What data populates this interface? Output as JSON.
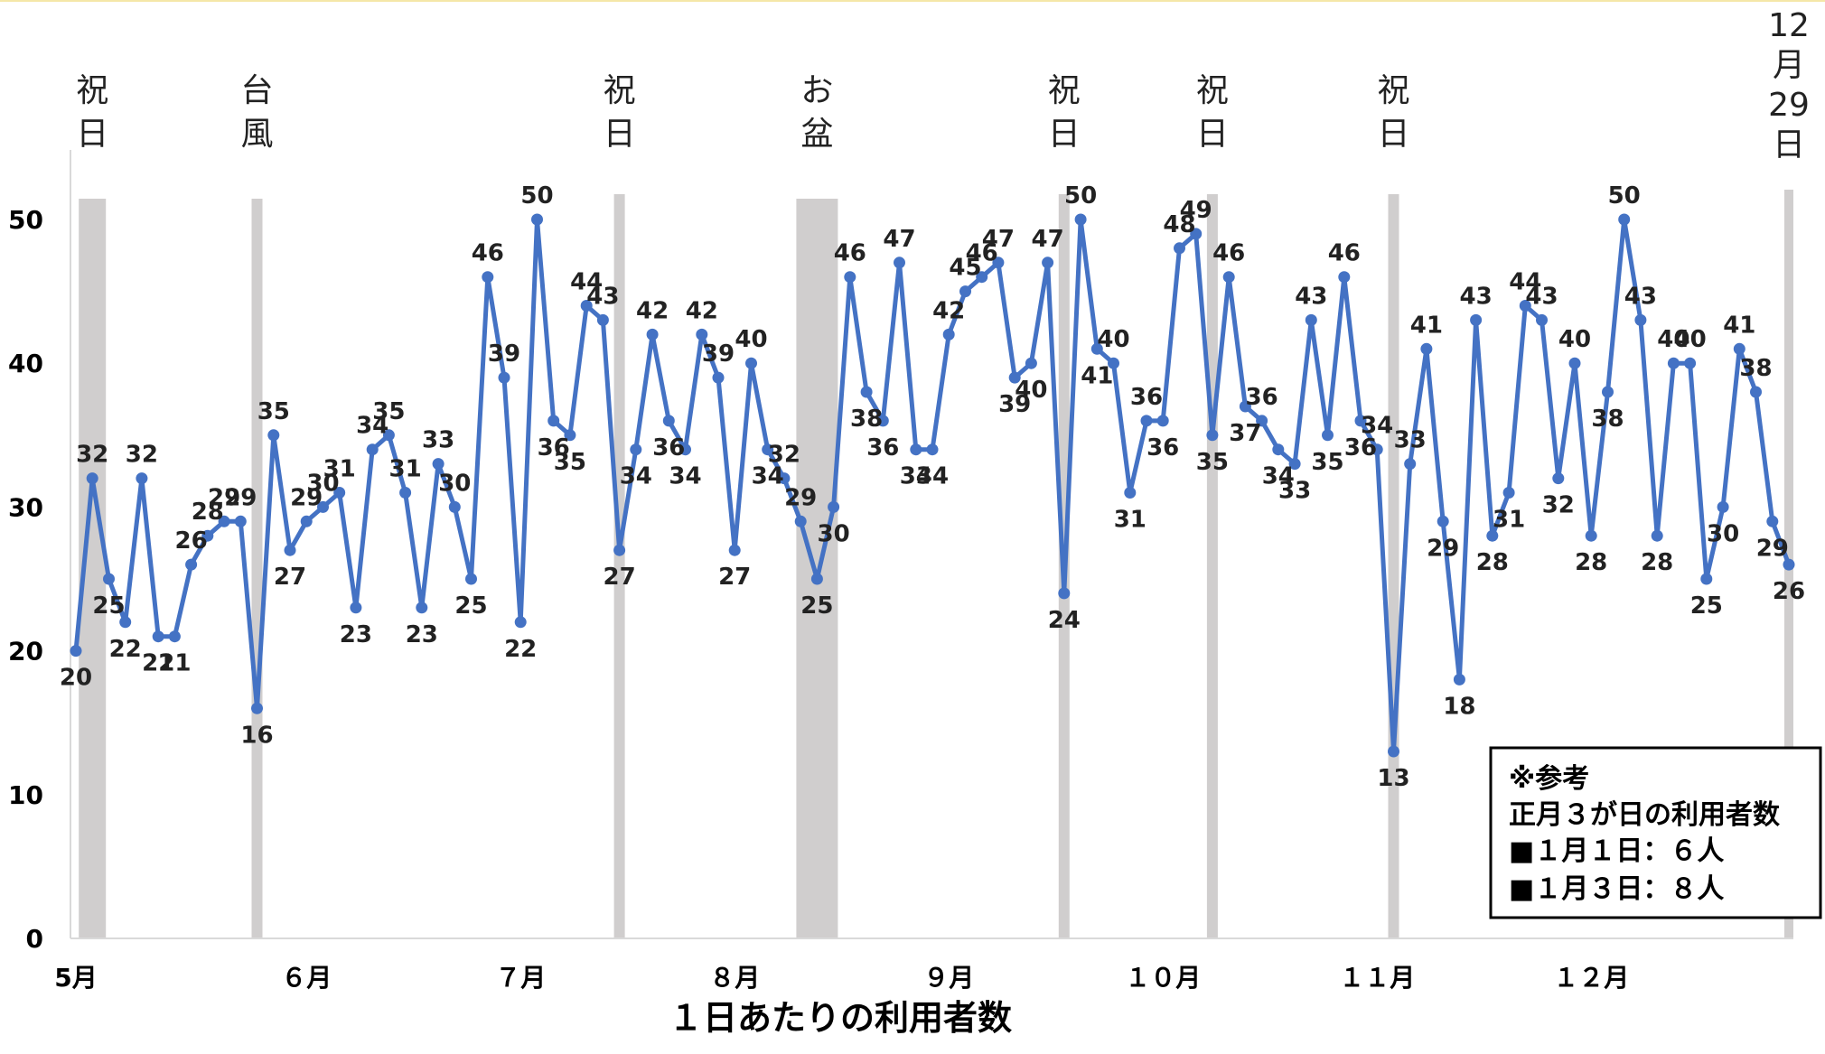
{
  "chart_data": {
    "type": "line",
    "xlabel": "１日あたりの利用者数",
    "ylim": [
      0,
      50
    ],
    "yticks": [
      "0",
      "10",
      "20",
      "30",
      "40",
      "50"
    ],
    "month_labels": [
      "5月",
      "６月",
      "７月",
      "８月",
      "９月",
      "１０月",
      "１１月",
      "１２月"
    ],
    "series_color": "#4472C4",
    "band_color": "#D0CECE",
    "values": [
      20,
      32,
      25,
      22,
      32,
      21,
      21,
      26,
      28,
      29,
      29,
      16,
      35,
      27,
      29,
      30,
      31,
      23,
      34,
      35,
      31,
      23,
      33,
      30,
      25,
      46,
      39,
      22,
      50,
      36,
      35,
      44,
      43,
      27,
      34,
      42,
      36,
      34,
      42,
      39,
      27,
      40,
      34,
      32,
      29,
      25,
      30,
      46,
      38,
      36,
      47,
      34,
      34,
      42,
      45,
      46,
      47,
      39,
      40,
      47,
      24,
      50,
      41,
      40,
      31,
      36,
      36,
      48,
      49,
      35,
      46,
      37,
      36,
      34,
      33,
      43,
      35,
      46,
      36,
      34,
      13,
      33,
      41,
      29,
      18,
      43,
      28,
      31,
      44,
      43,
      32,
      40,
      28,
      38,
      50,
      43,
      28,
      40,
      40,
      25,
      30,
      41,
      38,
      29,
      26
    ],
    "band_labels": [
      "祝日",
      "台風",
      "祝日",
      "お盆",
      "祝日",
      "祝日",
      "祝日",
      "12月29日"
    ],
    "note": {
      "title": "※参考",
      "line1": "正月３が日の利用者数",
      "line2": "■１月１日：６人",
      "line3": "■１月３日：８人"
    }
  }
}
